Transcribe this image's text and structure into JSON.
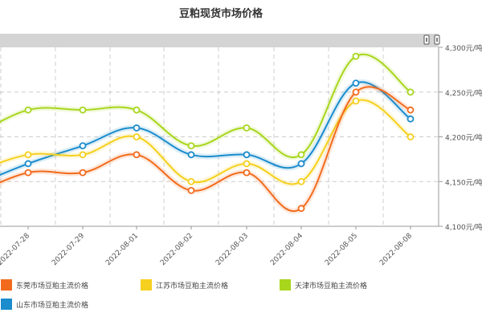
{
  "chart_data": {
    "type": "line",
    "title": "豆粕现货市场价格",
    "xlabel": "",
    "ylabel": "",
    "categories": [
      "2022-07-28",
      "2022-07-29",
      "2022-08-01",
      "2022-08-02",
      "2022-08-03",
      "2022-08-04",
      "2022-08-05",
      "2022-08-08"
    ],
    "y_ticks": [
      "4,100元/吨",
      "4,150元/吨",
      "4,200元/吨",
      "4,250元/吨",
      "4,300元/吨"
    ],
    "ylim": [
      4100,
      4300
    ],
    "grid": true,
    "legend_position": "bottom",
    "series": [
      {
        "name": "东莞市场豆粕主流价格",
        "color": "#f26b1d",
        "values": [
          4160,
          4160,
          4180,
          4140,
          4160,
          4120,
          4250,
          4230
        ],
        "prev": 4135
      },
      {
        "name": "江苏市场豆粕主流价格",
        "color": "#f5d01e",
        "values": [
          4180,
          4180,
          4200,
          4150,
          4170,
          4150,
          4240,
          4200
        ],
        "prev": 4160
      },
      {
        "name": "天津市场豆粕主流价格",
        "color": "#a8d61c",
        "values": [
          4230,
          4230,
          4230,
          4190,
          4210,
          4180,
          4290,
          4250
        ],
        "prev": 4200
      },
      {
        "name": "山东市场豆粕主流价格",
        "color": "#1b8ccc",
        "values": [
          4170,
          4190,
          4210,
          4180,
          4180,
          4170,
          4260,
          4220
        ],
        "prev": 4145
      }
    ]
  },
  "scrollbar": {
    "handles": [
      "left-handle",
      "right-handle"
    ]
  }
}
